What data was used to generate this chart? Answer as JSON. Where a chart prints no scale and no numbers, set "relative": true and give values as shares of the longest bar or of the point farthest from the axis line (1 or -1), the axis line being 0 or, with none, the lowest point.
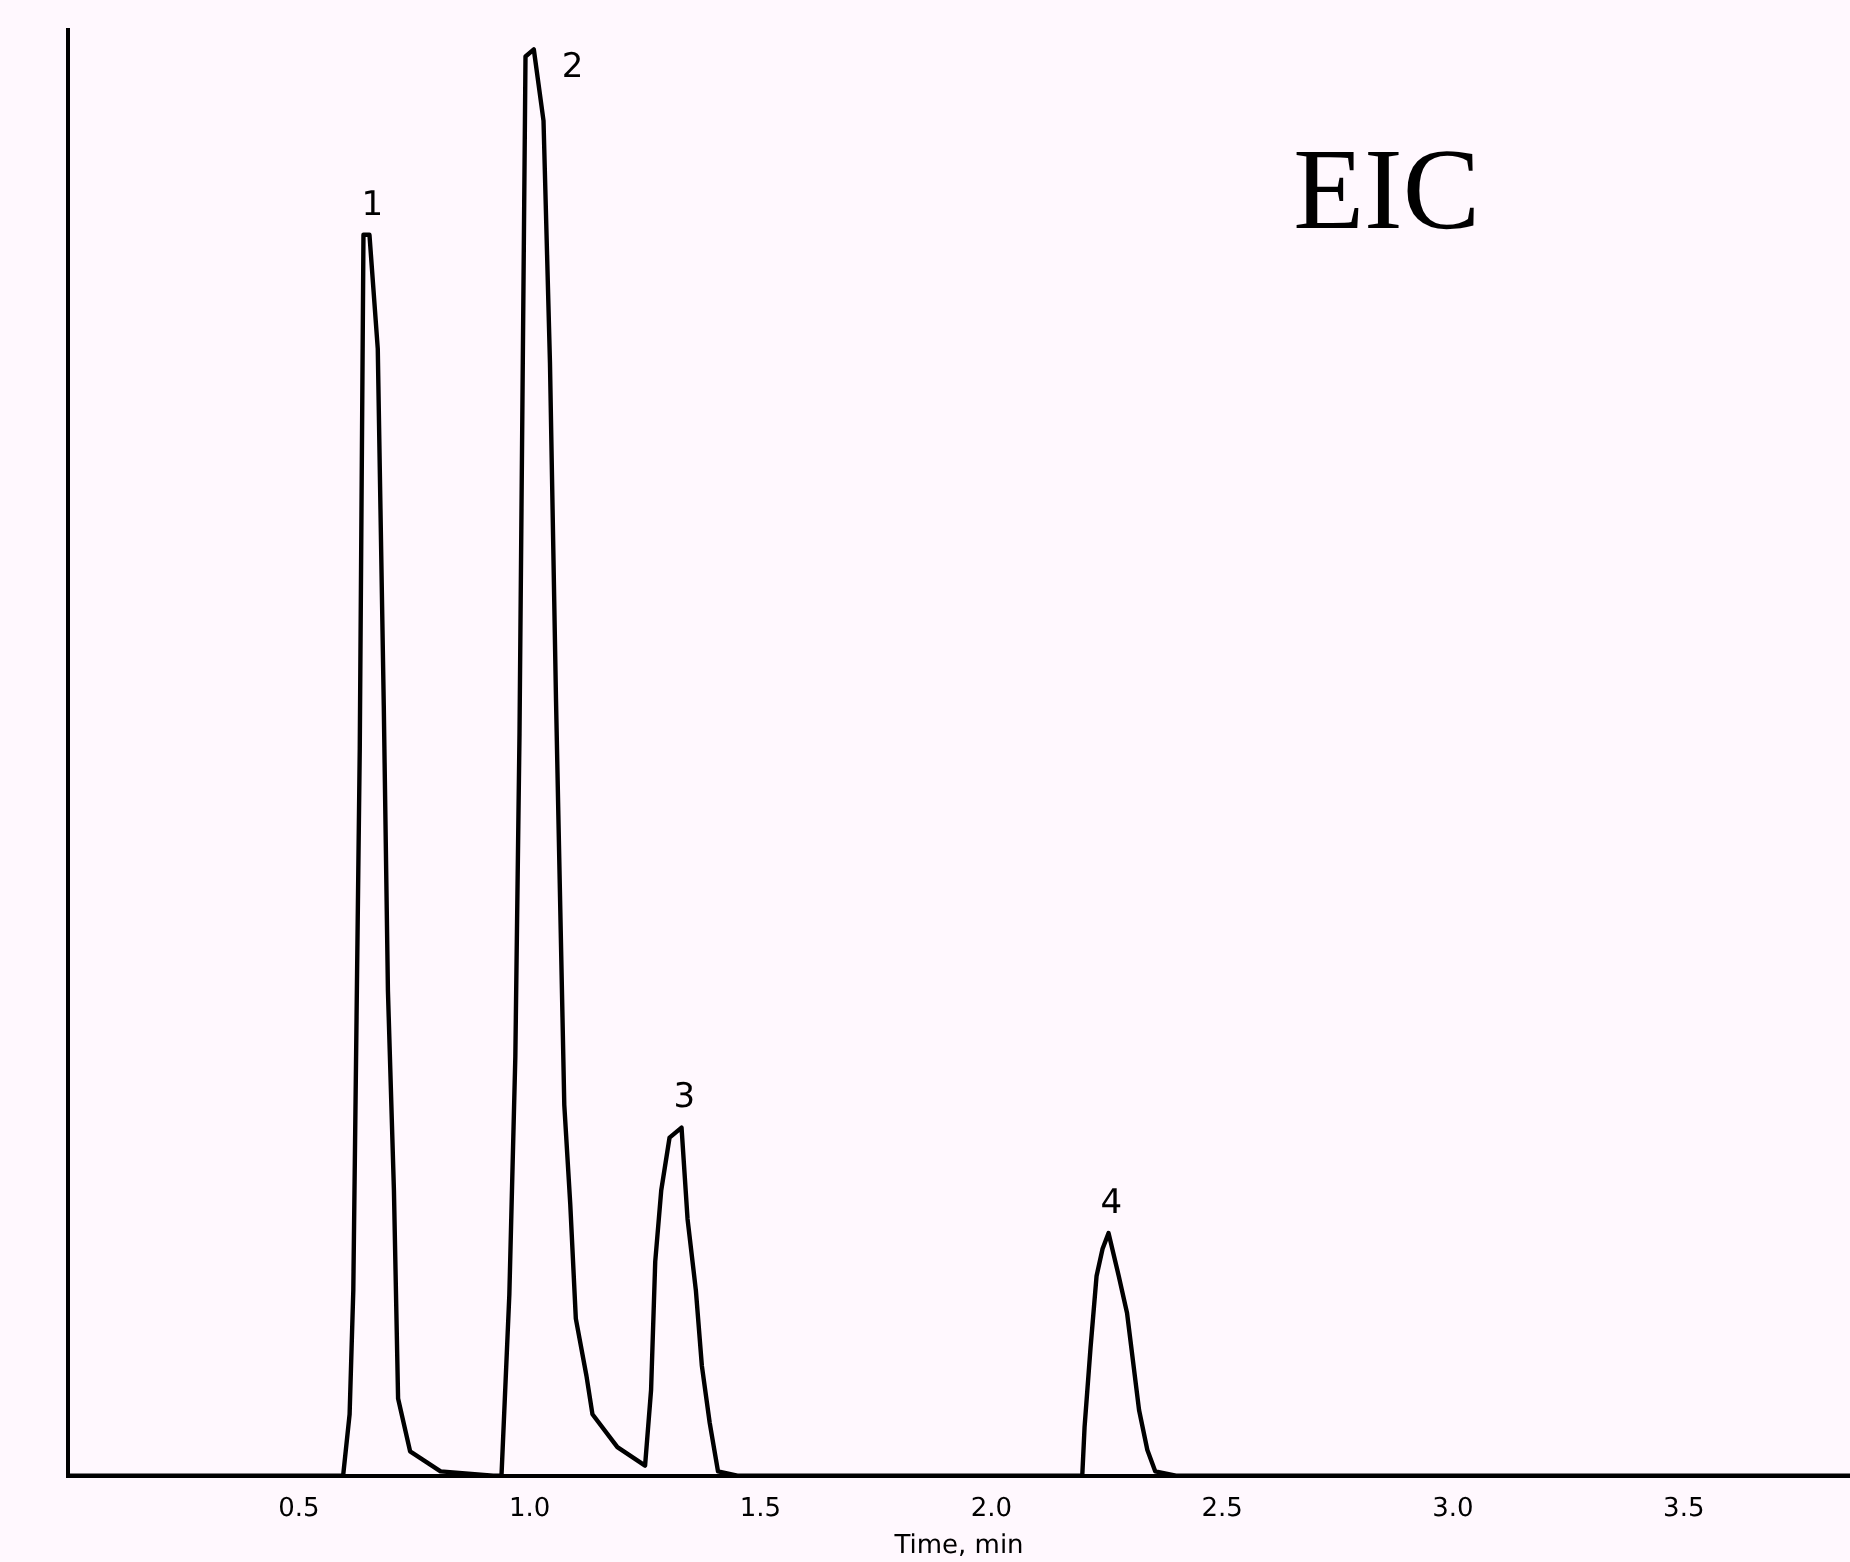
{
  "chart_data": {
    "type": "line",
    "relative": true,
    "xlabel": "Time, min",
    "xlim": [
      0,
      3.86
    ],
    "xticks": [
      0.5,
      {
        "value": 1,
        "label": "1.0"
      },
      1.5,
      {
        "value": 2,
        "label": "2.0"
      },
      2.5,
      {
        "value": 3,
        "label": "3.0"
      },
      3.5
    ],
    "grid": false,
    "legend": false,
    "marker": "none",
    "line_style": "solid",
    "annotations": [
      "EIC",
      {
        "text": "1",
        "x": 0.653,
        "y": 0.87
      },
      {
        "text": "2",
        "x": 1.009,
        "y": 1.0
      },
      {
        "text": "3",
        "x": 1.329,
        "y": 0.244
      },
      {
        "text": "4",
        "x": 2.254,
        "y": 0.17
      }
    ],
    "series": [
      {
        "color": "#000000",
        "x": [
          0,
          0.596,
          0.61,
          0.618,
          0.632,
          0.64,
          0.653,
          0.671,
          0.684,
          0.693,
          0.706,
          0.715,
          0.741,
          0.807,
          0.921,
          0.939,
          0.956,
          0.969,
          0.978,
          0.991,
          1.009,
          1.03,
          1.044,
          1.057,
          1.075,
          1.088,
          1.1,
          1.123,
          1.136,
          1.19,
          1.25,
          1.263,
          1.272,
          1.285,
          1.303,
          1.329,
          1.342,
          1.36,
          1.373,
          1.39,
          1.408,
          1.45,
          2.197,
          2.202,
          2.215,
          2.228,
          2.241,
          2.254,
          2.276,
          2.294,
          2.307,
          2.32,
          2.338,
          2.355,
          2.4,
          3.86
        ],
        "values": [
          0,
          0,
          0.043,
          0.13,
          0.51,
          0.87,
          0.87,
          0.79,
          0.54,
          0.34,
          0.2,
          0.054,
          0.017,
          0.003,
          0,
          0,
          0.127,
          0.294,
          0.52,
          0.995,
          1.0,
          0.95,
          0.78,
          0.545,
          0.26,
          0.19,
          0.11,
          0.07,
          0.043,
          0.02,
          0.007,
          0.06,
          0.15,
          0.2,
          0.237,
          0.244,
          0.18,
          0.13,
          0.077,
          0.037,
          0.003,
          0,
          0,
          0.034,
          0.09,
          0.14,
          0.159,
          0.17,
          0.14,
          0.114,
          0.08,
          0.046,
          0.018,
          0.003,
          0,
          0
        ]
      }
    ]
  }
}
